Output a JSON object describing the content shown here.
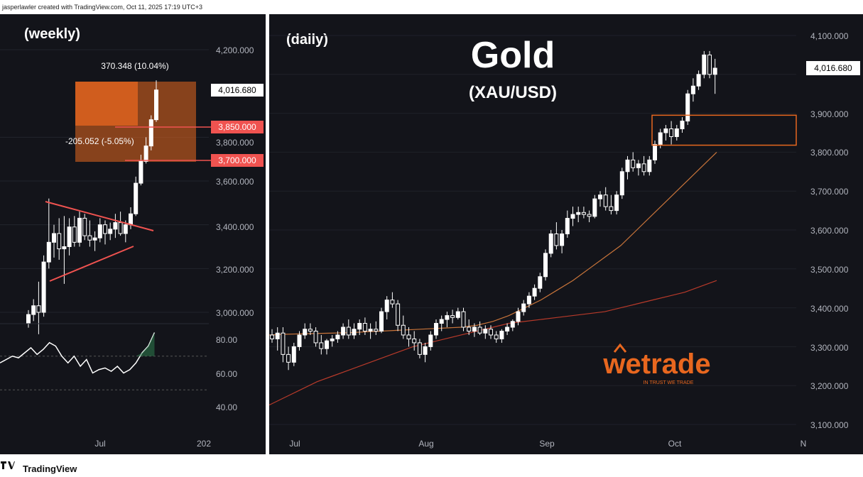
{
  "header": {
    "credit": "jasperlawler created with TradingView.com, Oct 11, 2025 17:19 UTC+3"
  },
  "footer": {
    "brand": "TradingView"
  },
  "colors": {
    "background": "#13141a",
    "candle_up": "#ffffff",
    "candle_down": "#ffffff",
    "accent_red": "#f05350",
    "orange_box": "#e8671f",
    "ma_fast": "#c8743a",
    "ma_slow": "#b83a2a",
    "rsi_line": "#ffffff",
    "price_label_bg": "#f05350"
  },
  "weekly": {
    "label": "(weekly)",
    "price_axis": [
      "4,200.000",
      "3,800.000",
      "3,600.000",
      "3,400.000",
      "3,200.000",
      "3,000.000"
    ],
    "time_axis": [
      "Jul",
      "202"
    ],
    "last_price": "4,016.680",
    "measure_up": "370.348 (10.04%)",
    "measure_down": "-205.052 (-5.05%)",
    "level_1": "3,850.000",
    "level_2": "3,700.000",
    "rsi_axis": [
      "80.00",
      "60.00",
      "40.00"
    ]
  },
  "daily": {
    "label": "(daily)",
    "title": "Gold",
    "subtitle": "(XAU/USD)",
    "price_axis": [
      "4,100.000",
      "3,900.000",
      "3,800.000",
      "3,700.000",
      "3,600.000",
      "3,500.000",
      "3,400.000",
      "3,300.000",
      "3,200.000",
      "3,100.000"
    ],
    "time_axis": [
      "Jul",
      "Aug",
      "Sep",
      "Oct",
      "N"
    ],
    "last_price": "4,016.680",
    "watermark": "wetrade",
    "watermark_tag": "IN TRUST WE TRADE"
  },
  "chart_data": [
    {
      "type": "candlestick",
      "timeframe": "weekly",
      "y_range": [
        2880,
        4280
      ],
      "candles": [
        {
          "o": 2950,
          "h": 3010,
          "l": 2930,
          "c": 2990
        },
        {
          "o": 2990,
          "h": 3060,
          "l": 2960,
          "c": 3030
        },
        {
          "o": 3030,
          "h": 3140,
          "l": 2900,
          "c": 3000
        },
        {
          "o": 3000,
          "h": 3260,
          "l": 2980,
          "c": 3230
        },
        {
          "o": 3230,
          "h": 3520,
          "l": 3200,
          "c": 3320
        },
        {
          "o": 3320,
          "h": 3400,
          "l": 3250,
          "c": 3360
        },
        {
          "o": 3360,
          "h": 3430,
          "l": 3240,
          "c": 3290
        },
        {
          "o": 3290,
          "h": 3440,
          "l": 3130,
          "c": 3300
        },
        {
          "o": 3300,
          "h": 3430,
          "l": 3260,
          "c": 3390
        },
        {
          "o": 3390,
          "h": 3440,
          "l": 3300,
          "c": 3320
        },
        {
          "o": 3320,
          "h": 3460,
          "l": 3300,
          "c": 3430
        },
        {
          "o": 3430,
          "h": 3450,
          "l": 3330,
          "c": 3350
        },
        {
          "o": 3350,
          "h": 3420,
          "l": 3300,
          "c": 3330
        },
        {
          "o": 3330,
          "h": 3370,
          "l": 3280,
          "c": 3340
        },
        {
          "o": 3340,
          "h": 3430,
          "l": 3320,
          "c": 3400
        },
        {
          "o": 3400,
          "h": 3420,
          "l": 3310,
          "c": 3360
        },
        {
          "o": 3360,
          "h": 3410,
          "l": 3330,
          "c": 3380
        },
        {
          "o": 3380,
          "h": 3450,
          "l": 3340,
          "c": 3410
        },
        {
          "o": 3410,
          "h": 3460,
          "l": 3350,
          "c": 3360
        },
        {
          "o": 3360,
          "h": 3420,
          "l": 3320,
          "c": 3400
        },
        {
          "o": 3400,
          "h": 3480,
          "l": 3380,
          "c": 3450
        },
        {
          "o": 3450,
          "h": 3620,
          "l": 3440,
          "c": 3590
        },
        {
          "o": 3590,
          "h": 3720,
          "l": 3580,
          "c": 3690
        },
        {
          "o": 3690,
          "h": 3800,
          "l": 3680,
          "c": 3760
        },
        {
          "o": 3760,
          "h": 3900,
          "l": 3740,
          "c": 3880
        },
        {
          "o": 3880,
          "h": 4060,
          "l": 3870,
          "c": 4016
        }
      ],
      "rsi": [
        66,
        68,
        70,
        69,
        72,
        75,
        71,
        74,
        78,
        76,
        70,
        66,
        70,
        64,
        68,
        60,
        62,
        63,
        61,
        64,
        60,
        62,
        66,
        72,
        76,
        84
      ]
    },
    {
      "type": "candlestick",
      "timeframe": "daily",
      "y_range": [
        3070,
        4130
      ],
      "candles": [
        {
          "o": 3330,
          "h": 3345,
          "l": 3310,
          "c": 3320
        },
        {
          "o": 3320,
          "h": 3350,
          "l": 3290,
          "c": 3335
        },
        {
          "o": 3335,
          "h": 3350,
          "l": 3260,
          "c": 3280
        },
        {
          "o": 3280,
          "h": 3300,
          "l": 3240,
          "c": 3260
        },
        {
          "o": 3260,
          "h": 3310,
          "l": 3250,
          "c": 3300
        },
        {
          "o": 3300,
          "h": 3340,
          "l": 3290,
          "c": 3330
        },
        {
          "o": 3330,
          "h": 3360,
          "l": 3320,
          "c": 3345
        },
        {
          "o": 3345,
          "h": 3360,
          "l": 3330,
          "c": 3340
        },
        {
          "o": 3340,
          "h": 3350,
          "l": 3300,
          "c": 3310
        },
        {
          "o": 3310,
          "h": 3330,
          "l": 3280,
          "c": 3295
        },
        {
          "o": 3295,
          "h": 3320,
          "l": 3280,
          "c": 3315
        },
        {
          "o": 3315,
          "h": 3330,
          "l": 3300,
          "c": 3320
        },
        {
          "o": 3320,
          "h": 3340,
          "l": 3310,
          "c": 3330
        },
        {
          "o": 3330,
          "h": 3360,
          "l": 3320,
          "c": 3350
        },
        {
          "o": 3350,
          "h": 3370,
          "l": 3320,
          "c": 3330
        },
        {
          "o": 3330,
          "h": 3360,
          "l": 3320,
          "c": 3345
        },
        {
          "o": 3345,
          "h": 3370,
          "l": 3330,
          "c": 3360
        },
        {
          "o": 3360,
          "h": 3375,
          "l": 3330,
          "c": 3340
        },
        {
          "o": 3340,
          "h": 3360,
          "l": 3320,
          "c": 3345
        },
        {
          "o": 3345,
          "h": 3365,
          "l": 3330,
          "c": 3340
        },
        {
          "o": 3340,
          "h": 3400,
          "l": 3335,
          "c": 3390
        },
        {
          "o": 3390,
          "h": 3430,
          "l": 3370,
          "c": 3420
        },
        {
          "o": 3420,
          "h": 3440,
          "l": 3400,
          "c": 3410
        },
        {
          "o": 3410,
          "h": 3420,
          "l": 3340,
          "c": 3355
        },
        {
          "o": 3355,
          "h": 3380,
          "l": 3320,
          "c": 3330
        },
        {
          "o": 3330,
          "h": 3350,
          "l": 3300,
          "c": 3320
        },
        {
          "o": 3320,
          "h": 3340,
          "l": 3290,
          "c": 3310
        },
        {
          "o": 3310,
          "h": 3320,
          "l": 3270,
          "c": 3280
        },
        {
          "o": 3280,
          "h": 3310,
          "l": 3260,
          "c": 3300
        },
        {
          "o": 3300,
          "h": 3340,
          "l": 3290,
          "c": 3330
        },
        {
          "o": 3330,
          "h": 3370,
          "l": 3320,
          "c": 3360
        },
        {
          "o": 3360,
          "h": 3380,
          "l": 3340,
          "c": 3370
        },
        {
          "o": 3370,
          "h": 3390,
          "l": 3350,
          "c": 3380
        },
        {
          "o": 3380,
          "h": 3395,
          "l": 3360,
          "c": 3375
        },
        {
          "o": 3375,
          "h": 3400,
          "l": 3370,
          "c": 3390
        },
        {
          "o": 3390,
          "h": 3400,
          "l": 3340,
          "c": 3350
        },
        {
          "o": 3350,
          "h": 3370,
          "l": 3330,
          "c": 3340
        },
        {
          "o": 3340,
          "h": 3360,
          "l": 3325,
          "c": 3350
        },
        {
          "o": 3350,
          "h": 3365,
          "l": 3330,
          "c": 3335
        },
        {
          "o": 3335,
          "h": 3355,
          "l": 3320,
          "c": 3345
        },
        {
          "o": 3345,
          "h": 3355,
          "l": 3320,
          "c": 3330
        },
        {
          "o": 3330,
          "h": 3340,
          "l": 3310,
          "c": 3320
        },
        {
          "o": 3320,
          "h": 3345,
          "l": 3310,
          "c": 3340
        },
        {
          "o": 3340,
          "h": 3360,
          "l": 3330,
          "c": 3350
        },
        {
          "o": 3350,
          "h": 3370,
          "l": 3340,
          "c": 3365
        },
        {
          "o": 3365,
          "h": 3400,
          "l": 3355,
          "c": 3390
        },
        {
          "o": 3390,
          "h": 3420,
          "l": 3380,
          "c": 3410
        },
        {
          "o": 3410,
          "h": 3440,
          "l": 3400,
          "c": 3430
        },
        {
          "o": 3430,
          "h": 3460,
          "l": 3420,
          "c": 3450
        },
        {
          "o": 3450,
          "h": 3490,
          "l": 3440,
          "c": 3480
        },
        {
          "o": 3480,
          "h": 3550,
          "l": 3470,
          "c": 3540
        },
        {
          "o": 3540,
          "h": 3600,
          "l": 3530,
          "c": 3590
        },
        {
          "o": 3590,
          "h": 3620,
          "l": 3550,
          "c": 3560
        },
        {
          "o": 3560,
          "h": 3600,
          "l": 3540,
          "c": 3590
        },
        {
          "o": 3590,
          "h": 3650,
          "l": 3580,
          "c": 3630
        },
        {
          "o": 3630,
          "h": 3660,
          "l": 3610,
          "c": 3640
        },
        {
          "o": 3640,
          "h": 3660,
          "l": 3620,
          "c": 3645
        },
        {
          "o": 3645,
          "h": 3660,
          "l": 3630,
          "c": 3640
        },
        {
          "o": 3640,
          "h": 3650,
          "l": 3620,
          "c": 3635
        },
        {
          "o": 3635,
          "h": 3690,
          "l": 3630,
          "c": 3680
        },
        {
          "o": 3680,
          "h": 3700,
          "l": 3660,
          "c": 3690
        },
        {
          "o": 3690,
          "h": 3710,
          "l": 3650,
          "c": 3660
        },
        {
          "o": 3660,
          "h": 3690,
          "l": 3640,
          "c": 3650
        },
        {
          "o": 3650,
          "h": 3700,
          "l": 3640,
          "c": 3690
        },
        {
          "o": 3690,
          "h": 3760,
          "l": 3680,
          "c": 3750
        },
        {
          "o": 3750,
          "h": 3790,
          "l": 3730,
          "c": 3780
        },
        {
          "o": 3780,
          "h": 3800,
          "l": 3750,
          "c": 3760
        },
        {
          "o": 3760,
          "h": 3780,
          "l": 3740,
          "c": 3770
        },
        {
          "o": 3770,
          "h": 3790,
          "l": 3740,
          "c": 3750
        },
        {
          "o": 3750,
          "h": 3790,
          "l": 3740,
          "c": 3780
        },
        {
          "o": 3780,
          "h": 3830,
          "l": 3770,
          "c": 3820
        },
        {
          "o": 3820,
          "h": 3860,
          "l": 3810,
          "c": 3850
        },
        {
          "o": 3850,
          "h": 3870,
          "l": 3830,
          "c": 3860
        },
        {
          "o": 3860,
          "h": 3880,
          "l": 3820,
          "c": 3840
        },
        {
          "o": 3840,
          "h": 3870,
          "l": 3830,
          "c": 3860
        },
        {
          "o": 3860,
          "h": 3890,
          "l": 3850,
          "c": 3880
        },
        {
          "o": 3880,
          "h": 3960,
          "l": 3870,
          "c": 3950
        },
        {
          "o": 3950,
          "h": 3990,
          "l": 3930,
          "c": 3970
        },
        {
          "o": 3970,
          "h": 4010,
          "l": 3960,
          "c": 4000
        },
        {
          "o": 4000,
          "h": 4060,
          "l": 3990,
          "c": 4050
        },
        {
          "o": 4050,
          "h": 4060,
          "l": 3990,
          "c": 4000
        },
        {
          "o": 4000,
          "h": 4040,
          "l": 3950,
          "c": 4016
        }
      ],
      "box": {
        "y_top": 3895,
        "y_bottom": 3818
      },
      "ma_fast": [
        3330,
        3332,
        3333,
        3334,
        3335,
        3336,
        3338,
        3340,
        3342,
        3344,
        3346,
        3348,
        3350,
        3355,
        3365,
        3380,
        3400,
        3420,
        3445,
        3470,
        3500,
        3530,
        3560,
        3600,
        3640,
        3680,
        3720,
        3760,
        3800
      ],
      "ma_slow": [
        3150,
        3170,
        3190,
        3210,
        3225,
        3240,
        3255,
        3270,
        3285,
        3300,
        3310,
        3320,
        3330,
        3340,
        3350,
        3360,
        3365,
        3370,
        3375,
        3380,
        3385,
        3390,
        3400,
        3410,
        3420,
        3430,
        3440,
        3455,
        3470
      ]
    }
  ]
}
